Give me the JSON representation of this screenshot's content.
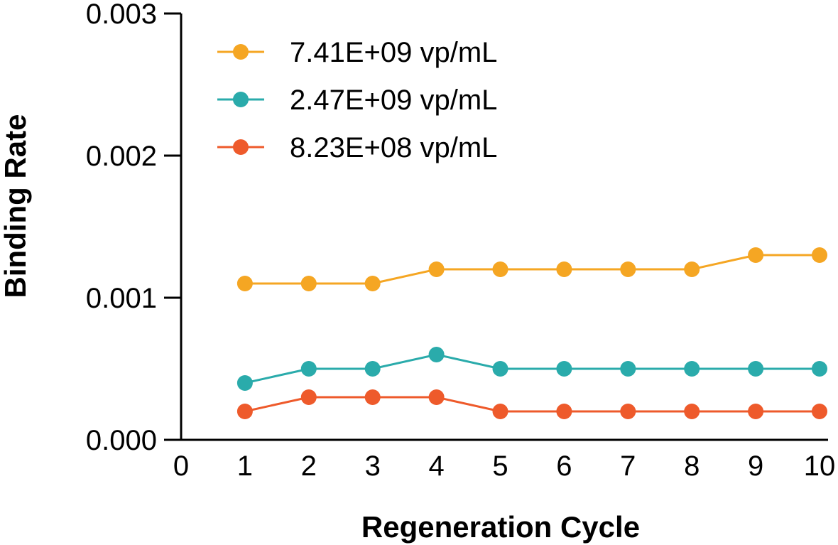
{
  "chart_data": {
    "type": "line",
    "title": "",
    "xlabel": "Regeneration Cycle",
    "ylabel": "Binding Rate",
    "xlim": [
      0,
      10
    ],
    "ylim": [
      0,
      0.003
    ],
    "x_ticks": [
      "0",
      "1",
      "2",
      "3",
      "4",
      "5",
      "6",
      "7",
      "8",
      "9",
      "10"
    ],
    "y_ticks": [
      "0.000",
      "0.001",
      "0.002",
      "0.003"
    ],
    "grid": false,
    "legend_position": "top-left",
    "x": [
      1,
      2,
      3,
      4,
      5,
      6,
      7,
      8,
      9,
      10
    ],
    "series": [
      {
        "name": "7.41E+09 vp/mL",
        "color": "#f5a623",
        "values": [
          0.0011,
          0.0011,
          0.0011,
          0.0012,
          0.0012,
          0.0012,
          0.0012,
          0.0012,
          0.0013,
          0.0013
        ]
      },
      {
        "name": "2.47E+09 vp/mL",
        "color": "#2aabab",
        "values": [
          0.0004,
          0.0005,
          0.0005,
          0.0006,
          0.0005,
          0.0005,
          0.0005,
          0.0005,
          0.0005,
          0.0005
        ]
      },
      {
        "name": "8.23E+08 vp/mL",
        "color": "#ee5a2b",
        "values": [
          0.0002,
          0.0003,
          0.0003,
          0.0003,
          0.0002,
          0.0002,
          0.0002,
          0.0002,
          0.0002,
          0.0002
        ]
      }
    ]
  }
}
